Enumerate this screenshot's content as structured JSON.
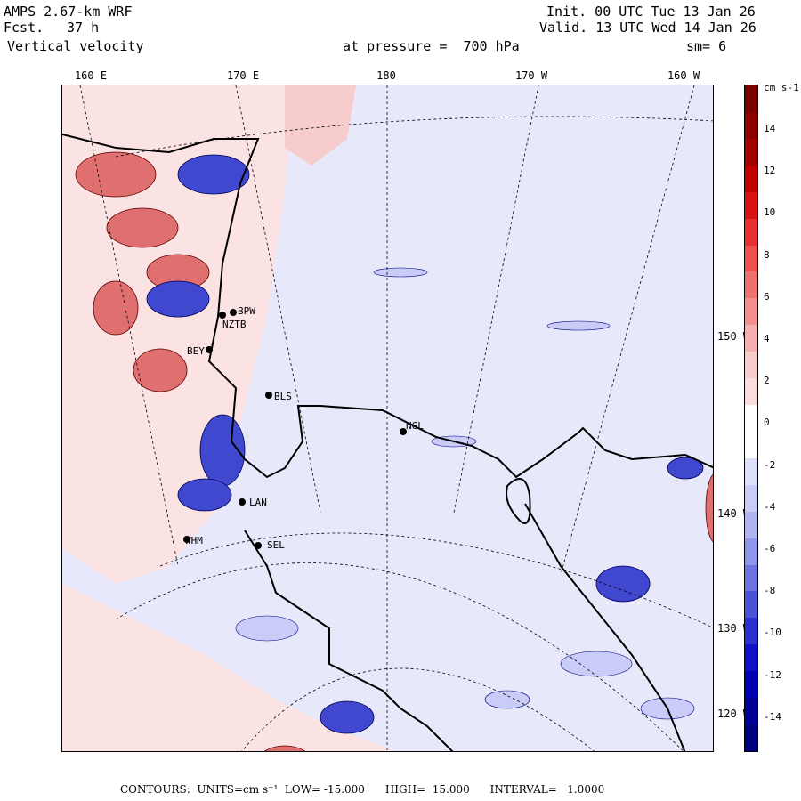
{
  "header": {
    "model": "AMPS 2.67-km WRF",
    "forecast_label": "Fcst.",
    "forecast_value": "37 h",
    "field": "Vertical velocity",
    "init": "Init. 00 UTC Tue 13 Jan 26",
    "valid": "Valid. 13 UTC Wed 14 Jan 26",
    "pressure": "at pressure =  700 hPa",
    "smoothing": "sm= 6"
  },
  "lon_labels": [
    "160 E",
    "170 E",
    "180",
    "170 W",
    "160 W"
  ],
  "lat_labels": [
    "150 W",
    "140 W",
    "130 W",
    "120 W"
  ],
  "stations": [
    "BPW",
    "NZTB",
    "BEY",
    "BLS",
    "NGL",
    "LAN",
    "WHM",
    "SEL"
  ],
  "colorbar": {
    "unit": "cm s-1",
    "ticks": [
      "14",
      "12",
      "10",
      "8",
      "6",
      "4",
      "2",
      "0",
      "-2",
      "-4",
      "-6",
      "-8",
      "-10",
      "-12",
      "-14"
    ],
    "colors": [
      "#7a0000",
      "#8e0000",
      "#a50000",
      "#c00000",
      "#d81010",
      "#e83030",
      "#f05050",
      "#f07070",
      "#f29090",
      "#f6b0b0",
      "#f9cccc",
      "#fbdddd",
      "#ffffff",
      "#ffffff",
      "#dde0fb",
      "#c8ccf6",
      "#aeb4f0",
      "#8f96ea",
      "#6d74e2",
      "#4a52d8",
      "#2a30d0",
      "#1010c8",
      "#0000b0",
      "#000098",
      "#000080"
    ]
  },
  "footer": "CONTOURS:  UNITS=cm s⁻¹  LOW= -15.000      HIGH=  15.000      INTERVAL=   1.0000",
  "colors": {
    "background_blue": "#e7e9fb",
    "background_pink": "#fbe3e3",
    "updraft": "#e06060",
    "downdraft": "#4048d0"
  }
}
